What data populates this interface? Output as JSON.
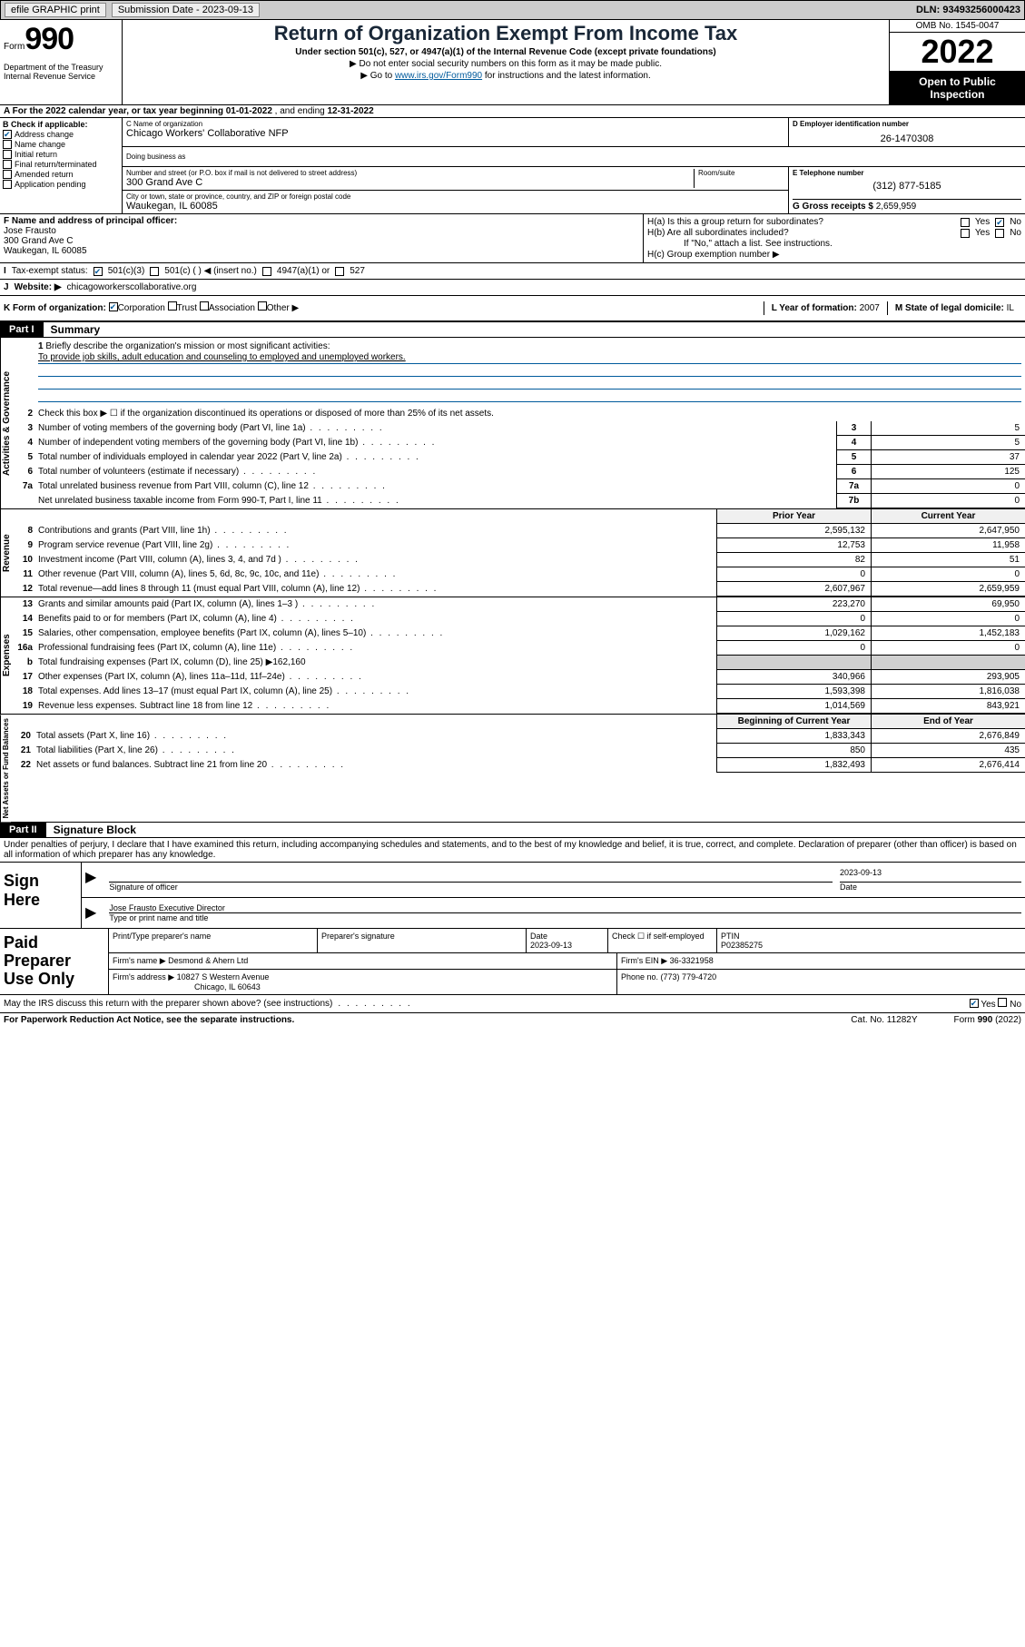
{
  "topbar": {
    "efile": "efile GRAPHIC print",
    "submission_label": "Submission Date - 2023-09-13",
    "dln": "DLN: 93493256000423"
  },
  "header": {
    "form_word": "Form",
    "form_num": "990",
    "dept": "Department of the Treasury\nInternal Revenue Service",
    "title": "Return of Organization Exempt From Income Tax",
    "subtitle": "Under section 501(c), 527, or 4947(a)(1) of the Internal Revenue Code (except private foundations)",
    "note1": "▶ Do not enter social security numbers on this form as it may be made public.",
    "note2_pre": "▶ Go to ",
    "note2_link": "www.irs.gov/Form990",
    "note2_post": " for instructions and the latest information.",
    "omb": "OMB No. 1545-0047",
    "year": "2022",
    "open_public": "Open to Public Inspection"
  },
  "period": {
    "label_a": "A For the 2022 calendar year, or tax year beginning ",
    "start": "01-01-2022",
    "mid": " , and ending ",
    "end": "12-31-2022"
  },
  "blockB": {
    "label": "B Check if applicable:",
    "items": [
      {
        "label": "Address change",
        "checked": true
      },
      {
        "label": "Name change",
        "checked": false
      },
      {
        "label": "Initial return",
        "checked": false
      },
      {
        "label": "Final return/terminated",
        "checked": false
      },
      {
        "label": "Amended return",
        "checked": false
      },
      {
        "label": "Application pending",
        "checked": false
      }
    ]
  },
  "blockC": {
    "name_label": "C Name of organization",
    "name": "Chicago Workers' Collaborative NFP",
    "dba_label": "Doing business as",
    "dba": "",
    "street_label": "Number and street (or P.O. box if mail is not delivered to street address)",
    "street": "300 Grand Ave C",
    "room_label": "Room/suite",
    "room": "",
    "city_label": "City or town, state or province, country, and ZIP or foreign postal code",
    "city": "Waukegan, IL  60085"
  },
  "blockD": {
    "label": "D Employer identification number",
    "ein": "26-1470308"
  },
  "blockE": {
    "label": "E Telephone number",
    "phone": "(312) 877-5185"
  },
  "blockG": {
    "label": "G Gross receipts $ ",
    "val": "2,659,959"
  },
  "blockF": {
    "label": "F Name and address of principal officer:",
    "name": "Jose Frausto",
    "addr1": "300 Grand Ave C",
    "addr2": "Waukegan, IL  60085"
  },
  "blockH": {
    "ha": "H(a)  Is this a group return for subordinates?",
    "hb": "H(b)  Are all subordinates included?",
    "hb_note": "If \"No,\" attach a list. See instructions.",
    "hc": "H(c)  Group exemption number ▶",
    "ha_yes": false,
    "ha_no": true,
    "hb_yes": false,
    "hb_no": false
  },
  "rowI": {
    "label": "Tax-exempt status:",
    "opt1": "501(c)(3)",
    "opt1_checked": true,
    "opt2": "501(c) (   ) ◀ (insert no.)",
    "opt3": "4947(a)(1) or",
    "opt4": "527"
  },
  "rowJ": {
    "label": "Website: ▶",
    "val": "chicagoworkerscollaborative.org"
  },
  "rowK": {
    "label": "K Form of organization:",
    "corp": "Corporation",
    "corp_checked": true,
    "trust": "Trust",
    "assoc": "Association",
    "other": "Other ▶",
    "l_label": "L Year of formation: ",
    "l_val": "2007",
    "m_label": "M State of legal domicile: ",
    "m_val": "IL"
  },
  "part1": {
    "hdr": "Part I",
    "title": "Summary",
    "line1_label": "Briefly describe the organization's mission or most significant activities:",
    "line1_text": "To provide job skills, adult education and counseling to employed and unemployed workers.",
    "line2": "Check this box ▶ ☐  if the organization discontinued its operations or disposed of more than 25% of its net assets."
  },
  "governance": {
    "side": "Activities & Governance",
    "rows": [
      {
        "n": "3",
        "t": "Number of voting members of the governing body (Part VI, line 1a)",
        "box": "3",
        "v": "5"
      },
      {
        "n": "4",
        "t": "Number of independent voting members of the governing body (Part VI, line 1b)",
        "box": "4",
        "v": "5"
      },
      {
        "n": "5",
        "t": "Total number of individuals employed in calendar year 2022 (Part V, line 2a)",
        "box": "5",
        "v": "37"
      },
      {
        "n": "6",
        "t": "Total number of volunteers (estimate if necessary)",
        "box": "6",
        "v": "125"
      },
      {
        "n": "7a",
        "t": "Total unrelated business revenue from Part VIII, column (C), line 12",
        "box": "7a",
        "v": "0"
      },
      {
        "n": "",
        "t": "Net unrelated business taxable income from Form 990-T, Part I, line 11",
        "box": "7b",
        "v": "0"
      }
    ]
  },
  "twocol_hdr": {
    "prior": "Prior Year",
    "current": "Current Year",
    "begin": "Beginning of Current Year",
    "end": "End of Year"
  },
  "revenue": {
    "side": "Revenue",
    "rows": [
      {
        "n": "8",
        "t": "Contributions and grants (Part VIII, line 1h)",
        "p": "2,595,132",
        "c": "2,647,950"
      },
      {
        "n": "9",
        "t": "Program service revenue (Part VIII, line 2g)",
        "p": "12,753",
        "c": "11,958"
      },
      {
        "n": "10",
        "t": "Investment income (Part VIII, column (A), lines 3, 4, and 7d )",
        "p": "82",
        "c": "51"
      },
      {
        "n": "11",
        "t": "Other revenue (Part VIII, column (A), lines 5, 6d, 8c, 9c, 10c, and 11e)",
        "p": "0",
        "c": "0"
      },
      {
        "n": "12",
        "t": "Total revenue—add lines 8 through 11 (must equal Part VIII, column (A), line 12)",
        "p": "2,607,967",
        "c": "2,659,959"
      }
    ]
  },
  "expenses": {
    "side": "Expenses",
    "rows": [
      {
        "n": "13",
        "t": "Grants and similar amounts paid (Part IX, column (A), lines 1–3 )",
        "p": "223,270",
        "c": "69,950"
      },
      {
        "n": "14",
        "t": "Benefits paid to or for members (Part IX, column (A), line 4)",
        "p": "0",
        "c": "0"
      },
      {
        "n": "15",
        "t": "Salaries, other compensation, employee benefits (Part IX, column (A), lines 5–10)",
        "p": "1,029,162",
        "c": "1,452,183"
      },
      {
        "n": "16a",
        "t": "Professional fundraising fees (Part IX, column (A), line 11e)",
        "p": "0",
        "c": "0"
      },
      {
        "n": "b",
        "t": "Total fundraising expenses (Part IX, column (D), line 25) ▶162,160",
        "gray": true
      },
      {
        "n": "17",
        "t": "Other expenses (Part IX, column (A), lines 11a–11d, 11f–24e)",
        "p": "340,966",
        "c": "293,905"
      },
      {
        "n": "18",
        "t": "Total expenses. Add lines 13–17 (must equal Part IX, column (A), line 25)",
        "p": "1,593,398",
        "c": "1,816,038"
      },
      {
        "n": "19",
        "t": "Revenue less expenses. Subtract line 18 from line 12",
        "p": "1,014,569",
        "c": "843,921"
      }
    ]
  },
  "netassets": {
    "side": "Net Assets or Fund Balances",
    "rows": [
      {
        "n": "20",
        "t": "Total assets (Part X, line 16)",
        "p": "1,833,343",
        "c": "2,676,849"
      },
      {
        "n": "21",
        "t": "Total liabilities (Part X, line 26)",
        "p": "850",
        "c": "435"
      },
      {
        "n": "22",
        "t": "Net assets or fund balances. Subtract line 21 from line 20",
        "p": "1,832,493",
        "c": "2,676,414"
      }
    ]
  },
  "part2": {
    "hdr": "Part II",
    "title": "Signature Block",
    "penalties": "Under penalties of perjury, I declare that I have examined this return, including accompanying schedules and statements, and to the best of my knowledge and belief, it is true, correct, and complete. Declaration of preparer (other than officer) is based on all information of which preparer has any knowledge."
  },
  "sign": {
    "left": "Sign Here",
    "sig_label": "Signature of officer",
    "date": "2023-09-13",
    "date_label": "Date",
    "name": "Jose Frausto Executive Director",
    "name_label": "Type or print name and title"
  },
  "preparer": {
    "left": "Paid Preparer Use Only",
    "h1": "Print/Type preparer's name",
    "h2": "Preparer's signature",
    "h3_label": "Date",
    "h3": "2023-09-13",
    "h4_label": "Check ☐ if self-employed",
    "h5_label": "PTIN",
    "ptin": "P02385275",
    "firm_name_label": "Firm's name    ▶",
    "firm_name": "Desmond & Ahern Ltd",
    "firm_ein_label": "Firm's EIN ▶",
    "firm_ein": "36-3321958",
    "firm_addr_label": "Firm's address ▶",
    "firm_addr1": "10827 S Western Avenue",
    "firm_addr2": "Chicago, IL  60643",
    "phone_label": "Phone no. ",
    "phone": "(773) 779-4720"
  },
  "discuss": {
    "q": "May the IRS discuss this return with the preparer shown above? (see instructions)",
    "yes_checked": true
  },
  "footer": {
    "pra": "For Paperwork Reduction Act Notice, see the separate instructions.",
    "cat": "Cat. No. 11282Y",
    "form": "Form 990 (2022)"
  },
  "colors": {
    "link": "#005a9c",
    "header_title": "#192737",
    "underline": "#005a9c",
    "gray_cell": "#d0d0d0",
    "hdr_cell": "#f0f0f0"
  }
}
